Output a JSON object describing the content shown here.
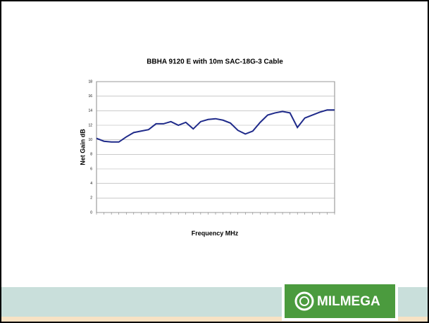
{
  "chart_data": {
    "type": "line",
    "title": "BBHA 9120 E with 10m SAC-18G-3 Cable",
    "x_label": "Frequency MHz",
    "y_label": "Net Gain dB",
    "categories": [
      null,
      null,
      null,
      null,
      null,
      null,
      null,
      null,
      null,
      null,
      null,
      null,
      null,
      null,
      null,
      null,
      null,
      null,
      null,
      null,
      null,
      null,
      null,
      null,
      null,
      null,
      null,
      null,
      null,
      null,
      null,
      null,
      null
    ],
    "series": [
      {
        "name": "Net Gain",
        "color": "#1f2a8a",
        "values": [
          10.2,
          9.8,
          9.7,
          9.7,
          10.4,
          11.0,
          11.2,
          11.4,
          12.2,
          12.2,
          12.5,
          12.0,
          12.4,
          11.5,
          12.5,
          12.8,
          12.9,
          12.7,
          12.3,
          11.3,
          10.8,
          11.2,
          12.4,
          13.4,
          13.7,
          13.9,
          13.7,
          11.7,
          13.0,
          13.4,
          13.8,
          14.1,
          14.1
        ]
      }
    ],
    "ylim": [
      0,
      18
    ],
    "yticks": [
      0,
      2,
      4,
      6,
      8,
      10,
      12,
      14,
      16,
      18
    ],
    "grid": true
  },
  "logo": "MILMEGA"
}
